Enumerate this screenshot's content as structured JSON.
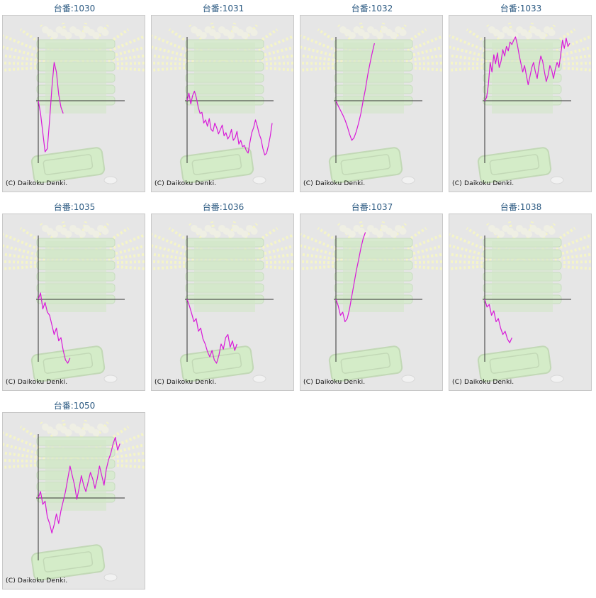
{
  "copyright": "(C) Daikoku Denki.",
  "colors": {
    "line": "#d81ad8",
    "axis": "#333333",
    "title": "#2c5a82"
  },
  "charts": [
    {
      "title": "台番:1030",
      "type": "line",
      "y": [
        0,
        -20,
        -50,
        -80,
        -75,
        -30,
        20,
        60,
        45,
        10,
        -10,
        -20
      ]
    },
    {
      "title": "台番:1031",
      "type": "line",
      "y": [
        0,
        12,
        -5,
        8,
        15,
        5,
        -10,
        -20,
        -18,
        -35,
        -30,
        -40,
        -28,
        -45,
        -48,
        -35,
        -42,
        -52,
        -45,
        -38,
        -55,
        -50,
        -60,
        -55,
        -45,
        -62,
        -58,
        -48,
        -68,
        -62,
        -72,
        -70,
        -78,
        -82,
        -65,
        -50,
        -42,
        -30,
        -40,
        -52,
        -60,
        -75,
        -85,
        -82,
        -70,
        -55,
        -35
      ]
    },
    {
      "title": "台番:1032",
      "type": "line",
      "y": [
        0,
        -8,
        -15,
        -22,
        -30,
        -40,
        -52,
        -62,
        -58,
        -48,
        -35,
        -20,
        0,
        18,
        40,
        58,
        75,
        90
      ]
    },
    {
      "title": "台番:1033",
      "type": "line",
      "y": [
        0,
        5,
        25,
        60,
        45,
        72,
        58,
        75,
        52,
        62,
        80,
        70,
        85,
        78,
        92,
        88,
        95,
        100,
        88,
        72,
        58,
        45,
        55,
        40,
        25,
        38,
        52,
        60,
        45,
        35,
        55,
        70,
        62,
        45,
        30,
        40,
        55,
        48,
        35,
        50,
        60,
        52,
        72,
        95,
        82,
        98,
        85,
        90
      ]
    },
    {
      "title": "台番:1035",
      "type": "line",
      "y": [
        0,
        10,
        -15,
        -5,
        -20,
        -25,
        -40,
        -55,
        -45,
        -65,
        -60,
        -80,
        -95,
        -100,
        -92
      ]
    },
    {
      "title": "台番:1036",
      "type": "line",
      "y": [
        0,
        -10,
        -22,
        -35,
        -30,
        -50,
        -45,
        -62,
        -70,
        -82,
        -90,
        -80,
        -95,
        -100,
        -88,
        -70,
        -78,
        -60,
        -55,
        -75,
        -65,
        -80,
        -70
      ]
    },
    {
      "title": "台番:1037",
      "type": "line",
      "y": [
        0,
        -10,
        -25,
        -20,
        -35,
        -30,
        -15,
        5,
        25,
        45,
        62,
        80,
        95,
        105
      ]
    },
    {
      "title": "台番:1038",
      "type": "line",
      "y": [
        0,
        -12,
        -8,
        -25,
        -18,
        -35,
        -30,
        -45,
        -55,
        -50,
        -62,
        -68,
        -60
      ]
    },
    {
      "title": "台番:1050",
      "type": "line",
      "y": [
        0,
        10,
        -10,
        -5,
        -30,
        -40,
        -55,
        -42,
        -25,
        -40,
        -20,
        -5,
        10,
        30,
        50,
        35,
        20,
        -2,
        15,
        35,
        20,
        10,
        25,
        40,
        30,
        15,
        30,
        50,
        35,
        20,
        45,
        60,
        70,
        85,
        95,
        75,
        85
      ]
    }
  ]
}
